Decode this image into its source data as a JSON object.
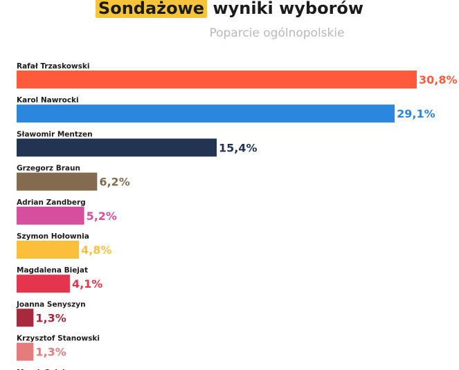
{
  "header": {
    "title_highlight": "Sondażowe",
    "title_rest": "wyniki wyborów",
    "subtitle": "Poparcie ogólnopolskie"
  },
  "chart_data": {
    "type": "bar",
    "orientation": "horizontal",
    "title": "Sondażowe wyniki wyborów",
    "subtitle": "Poparcie ogólnopolskie",
    "xlim": [
      0,
      30.8
    ],
    "grid": false,
    "legend": "none",
    "items": [
      {
        "name": "Rafał Trzaskowski",
        "value": 30.8,
        "label": "30,8%",
        "color": "#ff5a3c"
      },
      {
        "name": "Karol Nawrocki",
        "value": 29.1,
        "label": "29,1%",
        "color": "#2b86de"
      },
      {
        "name": "Sławomir Mentzen",
        "value": 15.4,
        "label": "15,4%",
        "color": "#233352"
      },
      {
        "name": "Grzegorz Braun",
        "value": 6.2,
        "label": "6,2%",
        "color": "#846b4f"
      },
      {
        "name": "Adrian Zandberg",
        "value": 5.2,
        "label": "5,2%",
        "color": "#d64f9e"
      },
      {
        "name": "Szymon Hołownia",
        "value": 4.8,
        "label": "4,8%",
        "color": "#fbbf3b"
      },
      {
        "name": "Magdalena Biejat",
        "value": 4.1,
        "label": "4,1%",
        "color": "#e5344d"
      },
      {
        "name": "Joanna Senyszyn",
        "value": 1.3,
        "label": "1,3%",
        "color": "#a8283e"
      },
      {
        "name": "Krzysztof Stanowski",
        "value": 1.3,
        "label": "1,3%",
        "color": "#e47c7c"
      },
      {
        "name": "Marek Solek",
        "value": null,
        "label": "",
        "color": "#1b1b1b"
      }
    ]
  }
}
